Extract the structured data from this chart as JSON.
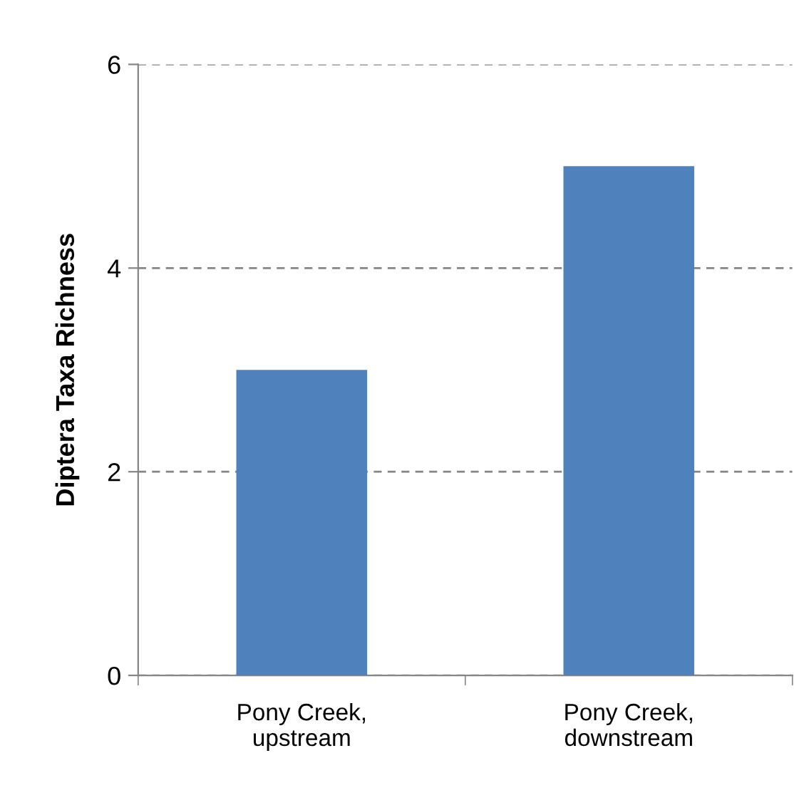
{
  "chart_data": {
    "type": "bar",
    "ylabel": "Diptera Taxa Richness",
    "categories": [
      "Pony Creek,\nupstream",
      "Pony Creek,\ndownstream"
    ],
    "values": [
      3,
      5
    ],
    "color": "#4f81bd",
    "ylim": [
      0,
      6
    ],
    "yticks": [
      0,
      2,
      4,
      6
    ],
    "grid": "y"
  }
}
